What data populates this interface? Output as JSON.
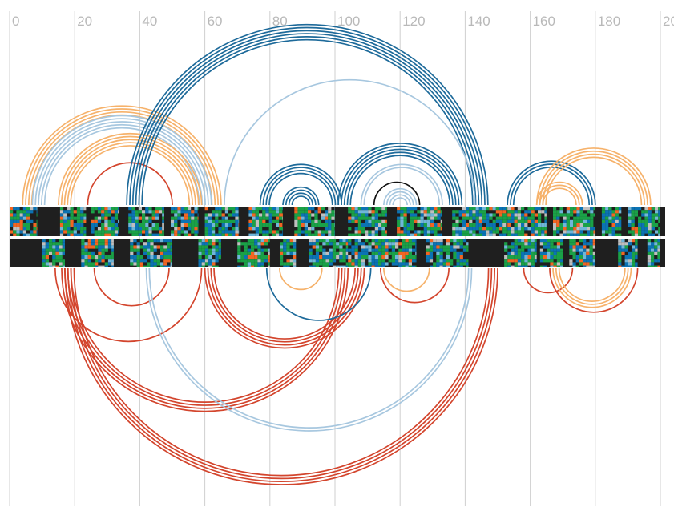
{
  "axis": {
    "ticks": [
      "0",
      "20",
      "40",
      "60",
      "80",
      "100",
      "120",
      "140",
      "160",
      "180",
      "200"
    ],
    "domain": [
      0,
      200
    ]
  },
  "tracks": {
    "background": "#1f1f1f",
    "palette": [
      "#1aa147",
      "#1aa147",
      "#0b73b4",
      "#1aa147",
      "#f26522",
      "#0b73b4",
      "#bfbfbf",
      "#6fb6d9",
      "#1aa147",
      "#0b73b4"
    ],
    "top": {
      "segments": [
        [
          0,
          8.5
        ],
        [
          15.5,
          23.5
        ],
        [
          25,
          33.5
        ],
        [
          36.5,
          47.5
        ],
        [
          49.5,
          58
        ],
        [
          60,
          70.5
        ],
        [
          73.5,
          84
        ],
        [
          87.5,
          100
        ],
        [
          104,
          116
        ],
        [
          119,
          133
        ],
        [
          136,
          153
        ],
        [
          153,
          165
        ],
        [
          167,
          180
        ],
        [
          182,
          188
        ],
        [
          190,
          200
        ]
      ]
    },
    "bottom": {
      "segments": [
        [
          10,
          17
        ],
        [
          22,
          32
        ],
        [
          37,
          50
        ],
        [
          58,
          65
        ],
        [
          70,
          80
        ],
        [
          83,
          88
        ],
        [
          92,
          104
        ],
        [
          104,
          125
        ],
        [
          128,
          141
        ],
        [
          152,
          162
        ],
        [
          163,
          170
        ],
        [
          172,
          180
        ],
        [
          187,
          193
        ],
        [
          196,
          200
        ]
      ]
    }
  },
  "arcs": {
    "colors": {
      "dark_blue": "#1d6a9a",
      "light_blue": "#a7c7df",
      "orange": "#f6b26b",
      "red": "#d3452d",
      "black": "#111111"
    },
    "bundles": [
      {
        "from": 4,
        "to": 65,
        "count": 4,
        "side": "top",
        "color": "orange"
      },
      {
        "from": 7,
        "to": 62,
        "count": 5,
        "side": "top",
        "color": "light_blue"
      },
      {
        "from": 15,
        "to": 59,
        "count": 5,
        "side": "top",
        "color": "orange"
      },
      {
        "from": 24,
        "to": 50,
        "count": 1,
        "side": "top",
        "color": "red"
      },
      {
        "from": 36,
        "to": 147,
        "count": 6,
        "side": "top",
        "color": "dark_blue"
      },
      {
        "from": 66,
        "to": 143,
        "count": 1,
        "side": "top",
        "color": "light_blue"
      },
      {
        "from": 77,
        "to": 102,
        "count": 4,
        "side": "top",
        "color": "dark_blue"
      },
      {
        "from": 84,
        "to": 95,
        "count": 4,
        "side": "top",
        "color": "dark_blue"
      },
      {
        "from": 101,
        "to": 139,
        "count": 5,
        "side": "top",
        "color": "dark_blue"
      },
      {
        "from": 108,
        "to": 133,
        "count": 2,
        "side": "top",
        "color": "light_blue"
      },
      {
        "from": 112,
        "to": 126,
        "count": 1,
        "side": "top",
        "color": "black"
      },
      {
        "from": 115,
        "to": 125,
        "count": 4,
        "side": "top",
        "color": "light_blue"
      },
      {
        "from": 153,
        "to": 180,
        "count": 3,
        "side": "top",
        "color": "dark_blue"
      },
      {
        "from": 162,
        "to": 197,
        "count": 4,
        "side": "top",
        "color": "orange"
      },
      {
        "from": 162,
        "to": 176,
        "count": 3,
        "side": "top",
        "color": "orange"
      },
      {
        "from": 26,
        "to": 49,
        "count": 1,
        "side": "bottom",
        "color": "red"
      },
      {
        "from": 14,
        "to": 59,
        "count": 1,
        "side": "bottom",
        "color": "red"
      },
      {
        "from": 16,
        "to": 104,
        "count": 4,
        "side": "bottom",
        "color": "red"
      },
      {
        "from": 17,
        "to": 150,
        "count": 4,
        "side": "bottom",
        "color": "red"
      },
      {
        "from": 42,
        "to": 142,
        "count": 2,
        "side": "bottom",
        "color": "light_blue"
      },
      {
        "from": 60,
        "to": 109,
        "count": 4,
        "side": "bottom",
        "color": "red"
      },
      {
        "from": 79,
        "to": 111,
        "count": 1,
        "side": "bottom",
        "color": "dark_blue"
      },
      {
        "from": 83,
        "to": 96,
        "count": 1,
        "side": "bottom",
        "color": "orange"
      },
      {
        "from": 114,
        "to": 135,
        "count": 1,
        "side": "bottom",
        "color": "red"
      },
      {
        "from": 115,
        "to": 129,
        "count": 1,
        "side": "bottom",
        "color": "orange"
      },
      {
        "from": 158,
        "to": 173,
        "count": 1,
        "side": "bottom",
        "color": "red"
      },
      {
        "from": 166,
        "to": 193,
        "count": 1,
        "side": "bottom",
        "color": "red"
      },
      {
        "from": 167,
        "to": 191,
        "count": 3,
        "side": "bottom",
        "color": "orange"
      }
    ]
  }
}
